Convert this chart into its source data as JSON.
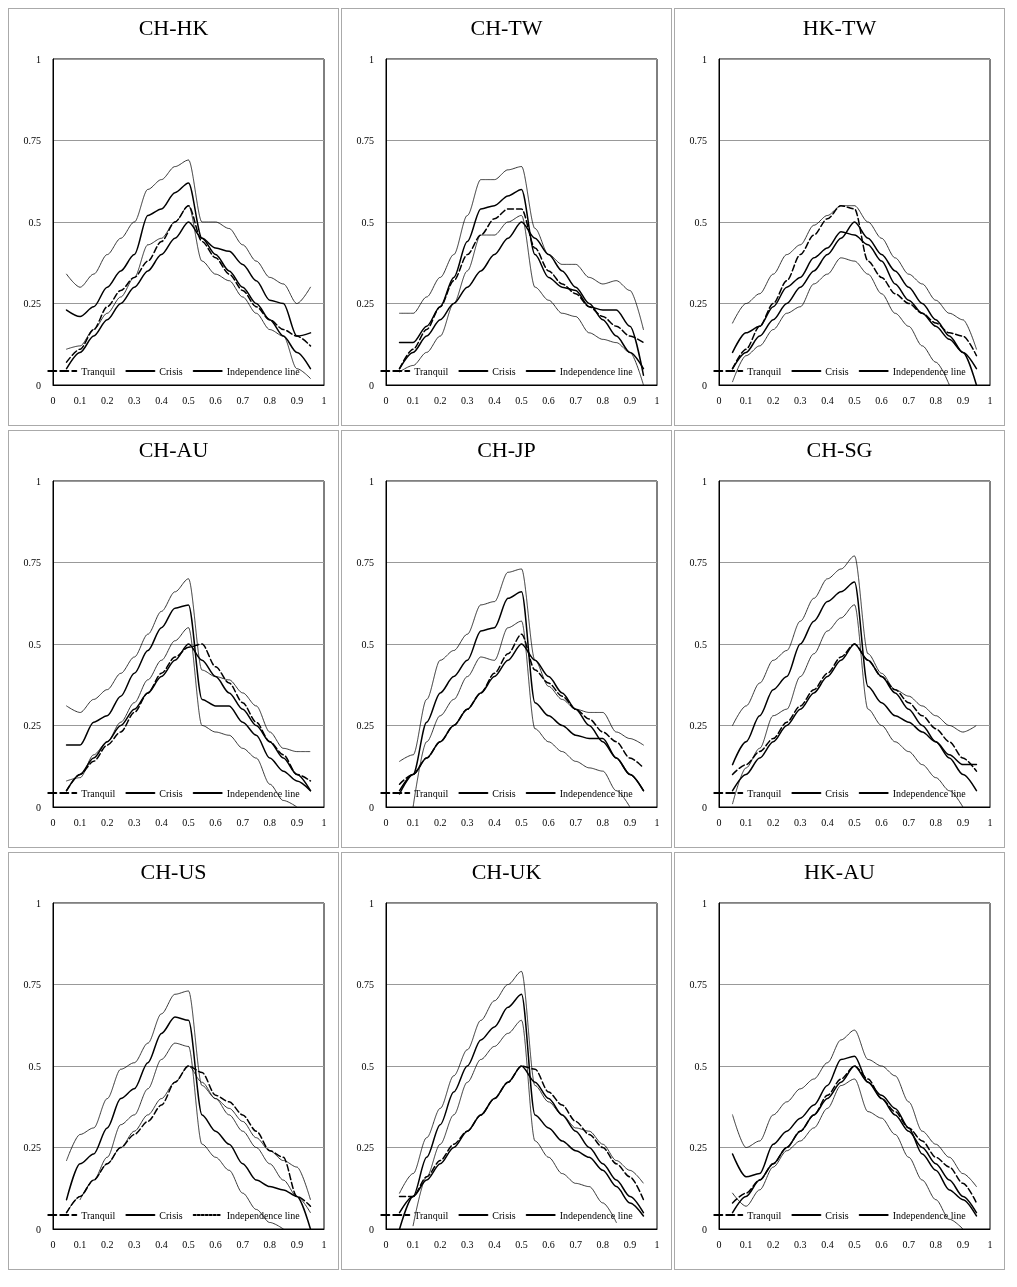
{
  "chart_data": [
    {
      "type": "line",
      "title": "CH-HK",
      "x": [
        0.05,
        0.1,
        0.15,
        0.2,
        0.25,
        0.3,
        0.35,
        0.4,
        0.45,
        0.5,
        0.55,
        0.6,
        0.65,
        0.7,
        0.75,
        0.8,
        0.85,
        0.9,
        0.95
      ],
      "xlim": [
        0,
        1
      ],
      "xticks": [
        0,
        0.1,
        0.2,
        0.3,
        0.4,
        0.5,
        0.6,
        0.7,
        0.8,
        0.9,
        1
      ],
      "ylim": [
        0,
        1
      ],
      "yticks": [
        0,
        0.25,
        0.5,
        0.75,
        1
      ],
      "grid": "y",
      "legend": "bottom",
      "marker": "none",
      "series": [
        {
          "name": "Tranquil",
          "color": "#000000",
          "line_style": "dashed",
          "values": [
            0.07,
            0.11,
            0.17,
            0.24,
            0.29,
            0.33,
            0.38,
            0.44,
            0.5,
            0.55,
            0.44,
            0.39,
            0.34,
            0.29,
            0.24,
            0.2,
            0.17,
            0.15,
            0.12
          ]
        },
        {
          "name": "Crisis",
          "color": "#000000",
          "line_style": "solid",
          "values": [
            0.23,
            0.21,
            0.24,
            0.3,
            0.35,
            0.4,
            0.52,
            0.54,
            0.59,
            0.62,
            0.45,
            0.42,
            0.41,
            0.37,
            0.32,
            0.26,
            0.25,
            0.15,
            0.16
          ]
        },
        {
          "color": "#000000",
          "line_style": "dotted",
          "values": [
            0.11,
            0.12,
            0.17,
            0.22,
            0.27,
            0.33,
            0.43,
            0.45,
            0.5,
            0.55,
            0.38,
            0.34,
            0.32,
            0.27,
            0.22,
            0.17,
            0.15,
            0.05,
            0.02
          ]
        },
        {
          "color": "#000000",
          "line_style": "dotted",
          "values": [
            0.34,
            0.3,
            0.34,
            0.4,
            0.45,
            0.5,
            0.6,
            0.63,
            0.67,
            0.69,
            0.5,
            0.5,
            0.48,
            0.43,
            0.38,
            0.33,
            0.31,
            0.25,
            0.3
          ]
        },
        {
          "name": "Independence line",
          "color": "#000000",
          "line_style": "solid",
          "values": [
            0.05,
            0.1,
            0.15,
            0.2,
            0.25,
            0.3,
            0.35,
            0.4,
            0.45,
            0.5,
            0.45,
            0.4,
            0.35,
            0.3,
            0.25,
            0.2,
            0.15,
            0.1,
            0.05
          ]
        }
      ]
    },
    {
      "type": "line",
      "title": "CH-TW",
      "x": [
        0.05,
        0.1,
        0.15,
        0.2,
        0.25,
        0.3,
        0.35,
        0.4,
        0.45,
        0.5,
        0.55,
        0.6,
        0.65,
        0.7,
        0.75,
        0.8,
        0.85,
        0.9,
        0.95
      ],
      "xlim": [
        0,
        1
      ],
      "xticks": [
        0,
        0.1,
        0.2,
        0.3,
        0.4,
        0.5,
        0.6,
        0.7,
        0.8,
        0.9,
        1
      ],
      "ylim": [
        0,
        1
      ],
      "yticks": [
        0,
        0.25,
        0.5,
        0.75,
        1
      ],
      "grid": "y",
      "legend": "bottom",
      "marker": "none",
      "series": [
        {
          "name": "Tranquil",
          "color": "#000000",
          "line_style": "dashed",
          "values": [
            0.05,
            0.11,
            0.17,
            0.24,
            0.32,
            0.4,
            0.46,
            0.51,
            0.54,
            0.54,
            0.42,
            0.35,
            0.31,
            0.28,
            0.24,
            0.21,
            0.18,
            0.15,
            0.13
          ]
        },
        {
          "name": "Crisis",
          "color": "#000000",
          "line_style": "solid",
          "values": [
            0.13,
            0.13,
            0.18,
            0.24,
            0.33,
            0.44,
            0.54,
            0.55,
            0.58,
            0.6,
            0.4,
            0.33,
            0.3,
            0.29,
            0.24,
            0.23,
            0.23,
            0.18,
            0.03
          ]
        },
        {
          "color": "#000000",
          "line_style": "dotted",
          "values": [
            0.04,
            0.06,
            0.1,
            0.15,
            0.25,
            0.35,
            0.46,
            0.46,
            0.5,
            0.52,
            0.3,
            0.26,
            0.22,
            0.21,
            0.16,
            0.14,
            0.13,
            0.1,
            0
          ]
        },
        {
          "color": "#000000",
          "line_style": "dotted",
          "values": [
            0.22,
            0.22,
            0.27,
            0.33,
            0.4,
            0.52,
            0.63,
            0.63,
            0.66,
            0.67,
            0.48,
            0.4,
            0.37,
            0.37,
            0.33,
            0.31,
            0.32,
            0.29,
            0.17
          ]
        },
        {
          "name": "Independence line",
          "color": "#000000",
          "line_style": "solid",
          "values": [
            0.05,
            0.1,
            0.15,
            0.2,
            0.25,
            0.3,
            0.35,
            0.4,
            0.45,
            0.5,
            0.45,
            0.4,
            0.35,
            0.3,
            0.25,
            0.2,
            0.15,
            0.1,
            0.05
          ]
        }
      ]
    },
    {
      "type": "line",
      "title": "HK-TW",
      "x": [
        0.05,
        0.1,
        0.15,
        0.2,
        0.25,
        0.3,
        0.35,
        0.4,
        0.45,
        0.5,
        0.55,
        0.6,
        0.65,
        0.7,
        0.75,
        0.8,
        0.85,
        0.9,
        0.95
      ],
      "xlim": [
        0,
        1
      ],
      "xticks": [
        0,
        0.1,
        0.2,
        0.3,
        0.4,
        0.5,
        0.6,
        0.7,
        0.8,
        0.9,
        1
      ],
      "ylim": [
        0,
        1
      ],
      "yticks": [
        0,
        0.25,
        0.5,
        0.75,
        1
      ],
      "grid": "y",
      "legend": "bottom",
      "marker": "none",
      "series": [
        {
          "name": "Tranquil",
          "color": "#000000",
          "line_style": "dashed",
          "values": [
            0.05,
            0.11,
            0.18,
            0.25,
            0.32,
            0.4,
            0.46,
            0.51,
            0.55,
            0.54,
            0.38,
            0.33,
            0.28,
            0.25,
            0.22,
            0.19,
            0.16,
            0.15,
            0.09
          ]
        },
        {
          "name": "Crisis",
          "color": "#000000",
          "line_style": "solid",
          "values": [
            0.1,
            0.16,
            0.18,
            0.24,
            0.3,
            0.33,
            0.39,
            0.42,
            0.47,
            0.46,
            0.43,
            0.38,
            0.31,
            0.26,
            0.22,
            0.18,
            0.14,
            0.1,
            0
          ]
        },
        {
          "color": "#000000",
          "line_style": "dotted",
          "values": [
            0.01,
            0.09,
            0.12,
            0.17,
            0.22,
            0.24,
            0.31,
            0.34,
            0.39,
            0.38,
            0.34,
            0.28,
            0.22,
            0.18,
            0.12,
            0.07,
            0,
            null,
            null
          ]
        },
        {
          "color": "#000000",
          "line_style": "dotted",
          "values": [
            0.19,
            0.25,
            0.28,
            0.34,
            0.4,
            0.43,
            0.49,
            0.52,
            0.55,
            0.55,
            0.5,
            0.45,
            0.39,
            0.34,
            0.31,
            0.26,
            0.22,
            0.2,
            0.11
          ]
        },
        {
          "name": "Independence line",
          "color": "#000000",
          "line_style": "solid",
          "values": [
            0.05,
            0.1,
            0.15,
            0.2,
            0.25,
            0.3,
            0.35,
            0.4,
            0.45,
            0.5,
            0.45,
            0.4,
            0.35,
            0.3,
            0.25,
            0.2,
            0.15,
            0.1,
            0.05
          ]
        }
      ]
    },
    {
      "type": "line",
      "title": "CH-AU",
      "x": [
        0.05,
        0.1,
        0.15,
        0.2,
        0.25,
        0.3,
        0.35,
        0.4,
        0.45,
        0.5,
        0.55,
        0.6,
        0.65,
        0.7,
        0.75,
        0.8,
        0.85,
        0.9,
        0.95
      ],
      "xlim": [
        0,
        1
      ],
      "xticks": [
        0,
        0.1,
        0.2,
        0.3,
        0.4,
        0.5,
        0.6,
        0.7,
        0.8,
        0.9,
        1
      ],
      "ylim": [
        0,
        1
      ],
      "yticks": [
        0,
        0.25,
        0.5,
        0.75,
        1
      ],
      "grid": "y",
      "legend": "bottom",
      "marker": "none",
      "series": [
        {
          "name": "Tranquil",
          "color": "#000000",
          "line_style": "dashed",
          "values": [
            0.05,
            0.1,
            0.14,
            0.19,
            0.23,
            0.29,
            0.35,
            0.41,
            0.46,
            0.49,
            0.5,
            0.43,
            0.38,
            0.32,
            0.26,
            0.2,
            0.16,
            0.1,
            0.08
          ]
        },
        {
          "name": "Crisis",
          "color": "#000000",
          "line_style": "solid",
          "values": [
            0.19,
            0.19,
            0.26,
            0.28,
            0.34,
            0.41,
            0.48,
            0.55,
            0.61,
            0.62,
            0.33,
            0.31,
            0.31,
            0.26,
            0.22,
            0.15,
            0.11,
            0.08,
            0.05
          ]
        },
        {
          "color": "#000000",
          "line_style": "dotted",
          "values": [
            0.08,
            0.09,
            0.16,
            0.2,
            0.26,
            0.32,
            0.39,
            0.45,
            0.51,
            0.55,
            0.25,
            0.23,
            0.22,
            0.18,
            0.15,
            0.07,
            0.02,
            0,
            null
          ]
        },
        {
          "color": "#000000",
          "line_style": "dotted",
          "values": [
            0.31,
            0.29,
            0.33,
            0.36,
            0.41,
            0.46,
            0.53,
            0.6,
            0.66,
            0.7,
            0.42,
            0.4,
            0.39,
            0.35,
            0.31,
            0.23,
            0.18,
            0.17,
            0.17
          ]
        },
        {
          "name": "Independence line",
          "color": "#000000",
          "line_style": "solid",
          "values": [
            0.05,
            0.1,
            0.15,
            0.2,
            0.25,
            0.3,
            0.35,
            0.4,
            0.45,
            0.5,
            0.45,
            0.4,
            0.35,
            0.3,
            0.25,
            0.2,
            0.15,
            0.1,
            0.05
          ]
        }
      ]
    },
    {
      "type": "line",
      "title": "CH-JP",
      "x": [
        0.05,
        0.1,
        0.15,
        0.2,
        0.25,
        0.3,
        0.35,
        0.4,
        0.45,
        0.5,
        0.55,
        0.6,
        0.65,
        0.7,
        0.75,
        0.8,
        0.85,
        0.9,
        0.95
      ],
      "xlim": [
        0,
        1
      ],
      "xticks": [
        0,
        0.1,
        0.2,
        0.3,
        0.4,
        0.5,
        0.6,
        0.7,
        0.8,
        0.9,
        1
      ],
      "ylim": [
        0,
        1
      ],
      "yticks": [
        0,
        0.25,
        0.5,
        0.75,
        1
      ],
      "grid": "y",
      "legend": "bottom",
      "marker": "none",
      "series": [
        {
          "name": "Tranquil",
          "color": "#000000",
          "line_style": "dashed",
          "values": [
            0.07,
            0.1,
            0.15,
            0.2,
            0.25,
            0.3,
            0.35,
            0.41,
            0.47,
            0.53,
            0.42,
            0.38,
            0.34,
            0.3,
            0.27,
            0.23,
            0.2,
            0.15,
            0.12
          ]
        },
        {
          "name": "Crisis",
          "color": "#000000",
          "line_style": "solid",
          "values": [
            0.04,
            0.1,
            0.26,
            0.35,
            0.4,
            0.45,
            0.54,
            0.55,
            0.64,
            0.66,
            0.32,
            0.28,
            0.25,
            0.22,
            0.21,
            0.21,
            0.15,
            0.1,
            0.05
          ]
        },
        {
          "color": "#000000",
          "line_style": "dotted",
          "values": [
            null,
            0,
            0.2,
            0.28,
            0.33,
            0.4,
            0.46,
            0.45,
            0.55,
            0.57,
            0.24,
            0.2,
            0.17,
            0.14,
            0.12,
            0.11,
            0.05,
            0,
            null
          ]
        },
        {
          "color": "#000000",
          "line_style": "dotted",
          "values": [
            0.14,
            0.16,
            0.33,
            0.45,
            0.48,
            0.53,
            0.62,
            0.63,
            0.72,
            0.73,
            0.45,
            0.37,
            0.33,
            0.3,
            0.29,
            0.29,
            0.23,
            0.21,
            0.19
          ]
        },
        {
          "name": "Independence line",
          "color": "#000000",
          "line_style": "solid",
          "values": [
            0.05,
            0.1,
            0.15,
            0.2,
            0.25,
            0.3,
            0.35,
            0.4,
            0.45,
            0.5,
            0.45,
            0.4,
            0.35,
            0.3,
            0.25,
            0.2,
            0.15,
            0.1,
            0.05
          ]
        }
      ]
    },
    {
      "type": "line",
      "title": "CH-SG",
      "x": [
        0.05,
        0.1,
        0.15,
        0.2,
        0.25,
        0.3,
        0.35,
        0.4,
        0.45,
        0.5,
        0.55,
        0.6,
        0.65,
        0.7,
        0.75,
        0.8,
        0.85,
        0.9,
        0.95
      ],
      "xlim": [
        0,
        1
      ],
      "xticks": [
        0,
        0.1,
        0.2,
        0.3,
        0.4,
        0.5,
        0.6,
        0.7,
        0.8,
        0.9,
        1
      ],
      "ylim": [
        0,
        1
      ],
      "yticks": [
        0,
        0.25,
        0.5,
        0.75,
        1
      ],
      "grid": "y",
      "legend": "bottom",
      "marker": "none",
      "series": [
        {
          "name": "Tranquil",
          "color": "#000000",
          "line_style": "dashed",
          "values": [
            0.1,
            0.13,
            0.17,
            0.21,
            0.26,
            0.31,
            0.36,
            0.41,
            0.46,
            0.5,
            0.45,
            0.4,
            0.36,
            0.32,
            0.28,
            0.24,
            0.2,
            0.15,
            0.11
          ]
        },
        {
          "name": "Crisis",
          "color": "#000000",
          "line_style": "solid",
          "values": [
            0.13,
            0.2,
            0.28,
            0.36,
            0.4,
            0.5,
            0.57,
            0.63,
            0.66,
            0.69,
            0.37,
            0.32,
            0.28,
            0.26,
            0.23,
            0.2,
            0.16,
            0.13,
            0.13
          ]
        },
        {
          "color": "#000000",
          "line_style": "dotted",
          "values": [
            0.01,
            0.12,
            0.18,
            0.28,
            0.3,
            0.4,
            0.47,
            0.54,
            0.58,
            0.62,
            0.3,
            0.25,
            0.2,
            0.17,
            0.13,
            0.09,
            0.05,
            0,
            null
          ]
        },
        {
          "color": "#000000",
          "line_style": "dotted",
          "values": [
            0.25,
            0.31,
            0.38,
            0.45,
            0.48,
            0.57,
            0.64,
            0.7,
            0.73,
            0.77,
            0.47,
            0.41,
            0.36,
            0.34,
            0.31,
            0.28,
            0.25,
            0.23,
            0.25
          ]
        },
        {
          "name": "Independence line",
          "color": "#000000",
          "line_style": "solid",
          "values": [
            0.05,
            0.1,
            0.15,
            0.2,
            0.25,
            0.3,
            0.35,
            0.4,
            0.45,
            0.5,
            0.45,
            0.4,
            0.35,
            0.3,
            0.25,
            0.2,
            0.15,
            0.1,
            0.05
          ]
        }
      ]
    },
    {
      "type": "line",
      "title": "CH-US",
      "x": [
        0.05,
        0.1,
        0.15,
        0.2,
        0.25,
        0.3,
        0.35,
        0.4,
        0.45,
        0.5,
        0.55,
        0.6,
        0.65,
        0.7,
        0.75,
        0.8,
        0.85,
        0.9,
        0.95
      ],
      "xlim": [
        0,
        1
      ],
      "xticks": [
        0,
        0.1,
        0.2,
        0.3,
        0.4,
        0.5,
        0.6,
        0.7,
        0.8,
        0.9,
        1
      ],
      "ylim": [
        0,
        1
      ],
      "yticks": [
        0,
        0.25,
        0.5,
        0.75,
        1
      ],
      "grid": "y",
      "legend": "bottom",
      "marker": "none",
      "series": [
        {
          "name": "Tranquil",
          "color": "#000000",
          "line_style": "dashed",
          "values": [
            0.05,
            0.1,
            0.15,
            0.2,
            0.25,
            0.29,
            0.33,
            0.38,
            0.45,
            0.5,
            0.48,
            0.41,
            0.39,
            0.35,
            0.3,
            0.24,
            0.22,
            0.1,
            0.07
          ]
        },
        {
          "name": "Crisis",
          "color": "#000000",
          "line_style": "solid",
          "values": [
            0.09,
            0.2,
            0.23,
            0.31,
            0.4,
            0.43,
            0.51,
            0.6,
            0.65,
            0.64,
            0.35,
            0.3,
            0.26,
            0.2,
            0.15,
            0.13,
            0.12,
            0.1,
            0
          ]
        },
        {
          "color": "#000000",
          "line_style": "dotted",
          "values": [
            null,
            0.09,
            0.15,
            0.22,
            0.32,
            0.35,
            0.43,
            0.52,
            0.57,
            0.56,
            0.26,
            0.22,
            0.18,
            0.11,
            0.06,
            0.02,
            0,
            null,
            null
          ]
        },
        {
          "color": "#000000",
          "line_style": "dotted",
          "values": [
            0.21,
            0.29,
            0.31,
            0.4,
            0.49,
            0.51,
            0.57,
            0.66,
            0.72,
            0.73,
            0.44,
            0.4,
            0.37,
            0.33,
            0.28,
            0.24,
            0.21,
            0.19,
            0.09
          ]
        },
        {
          "name": "Independence line",
          "color": "#000000",
          "line_style": "dotted",
          "values": [
            0.05,
            0.1,
            0.15,
            0.2,
            0.25,
            0.3,
            0.35,
            0.4,
            0.45,
            0.5,
            0.45,
            0.4,
            0.35,
            0.3,
            0.25,
            0.2,
            0.15,
            0.1,
            0.05
          ]
        }
      ]
    },
    {
      "type": "line",
      "title": "CH-UK",
      "x": [
        0.05,
        0.1,
        0.15,
        0.2,
        0.25,
        0.3,
        0.35,
        0.4,
        0.45,
        0.5,
        0.55,
        0.6,
        0.65,
        0.7,
        0.75,
        0.8,
        0.85,
        0.9,
        0.95
      ],
      "xlim": [
        0,
        1
      ],
      "xticks": [
        0,
        0.1,
        0.2,
        0.3,
        0.4,
        0.5,
        0.6,
        0.7,
        0.8,
        0.9,
        1
      ],
      "ylim": [
        0,
        1
      ],
      "yticks": [
        0,
        0.25,
        0.5,
        0.75,
        1
      ],
      "grid": "y",
      "legend": "bottom",
      "marker": "none",
      "series": [
        {
          "name": "Tranquil",
          "color": "#000000",
          "line_style": "dashed",
          "values": [
            0.1,
            0.1,
            0.16,
            0.21,
            0.26,
            0.3,
            0.35,
            0.4,
            0.45,
            0.5,
            0.49,
            0.42,
            0.38,
            0.33,
            0.29,
            0.25,
            0.2,
            0.16,
            0.09
          ]
        },
        {
          "name": "Crisis",
          "color": "#000000",
          "line_style": "solid",
          "values": [
            0,
            0.1,
            0.22,
            0.32,
            0.42,
            0.5,
            0.58,
            0.62,
            0.68,
            0.72,
            0.35,
            0.31,
            0.27,
            0.24,
            0.22,
            0.18,
            0.13,
            0.08,
            0.04
          ]
        },
        {
          "color": "#000000",
          "line_style": "dotted",
          "values": [
            null,
            0.01,
            0.16,
            0.26,
            0.35,
            0.45,
            0.52,
            0.56,
            0.6,
            0.64,
            0.27,
            0.22,
            0.17,
            0.14,
            0.13,
            0.08,
            0.02,
            null,
            null
          ]
        },
        {
          "color": "#000000",
          "line_style": "dotted",
          "values": [
            0.11,
            0.17,
            0.28,
            0.37,
            0.47,
            0.55,
            0.64,
            0.7,
            0.75,
            0.79,
            0.44,
            0.39,
            0.35,
            0.31,
            0.3,
            0.26,
            0.21,
            0.18,
            0.14
          ]
        },
        {
          "name": "Independence line",
          "color": "#000000",
          "line_style": "solid",
          "values": [
            0.05,
            0.1,
            0.15,
            0.2,
            0.25,
            0.3,
            0.35,
            0.4,
            0.45,
            0.5,
            0.45,
            0.4,
            0.35,
            0.3,
            0.25,
            0.2,
            0.15,
            0.1,
            0.05
          ]
        }
      ]
    },
    {
      "type": "line",
      "title": "HK-AU",
      "x": [
        0.05,
        0.1,
        0.15,
        0.2,
        0.25,
        0.3,
        0.35,
        0.4,
        0.45,
        0.5,
        0.55,
        0.6,
        0.65,
        0.7,
        0.75,
        0.8,
        0.85,
        0.9,
        0.95
      ],
      "xlim": [
        0,
        1
      ],
      "xticks": [
        0,
        0.1,
        0.2,
        0.3,
        0.4,
        0.5,
        0.6,
        0.7,
        0.8,
        0.9,
        1
      ],
      "ylim": [
        0,
        1
      ],
      "yticks": [
        0,
        0.25,
        0.5,
        0.75,
        1
      ],
      "grid": "y",
      "legend": "bottom",
      "marker": "none",
      "series": [
        {
          "name": "Tranquil",
          "color": "#000000",
          "line_style": "dashed",
          "values": [
            0.08,
            0.11,
            0.15,
            0.2,
            0.25,
            0.3,
            0.35,
            0.41,
            0.46,
            0.5,
            0.46,
            0.4,
            0.36,
            0.31,
            0.27,
            0.22,
            0.19,
            0.14,
            0.08
          ]
        },
        {
          "name": "Crisis",
          "color": "#000000",
          "line_style": "solid",
          "values": [
            0.23,
            0.16,
            0.17,
            0.26,
            0.3,
            0.34,
            0.38,
            0.44,
            0.52,
            0.53,
            0.45,
            0.41,
            0.37,
            0.31,
            0.23,
            0.18,
            0.12,
            0.09,
            0.04
          ]
        },
        {
          "color": "#000000",
          "line_style": "dotted",
          "values": [
            0.11,
            0.07,
            0.12,
            0.19,
            0.24,
            0.27,
            0.31,
            0.37,
            0.44,
            0.46,
            0.36,
            0.34,
            0.29,
            0.22,
            0.15,
            0.09,
            0.03,
            0,
            null
          ]
        },
        {
          "color": "#000000",
          "line_style": "dotted",
          "values": [
            0.35,
            0.25,
            0.27,
            0.35,
            0.39,
            0.43,
            0.46,
            0.51,
            0.58,
            0.61,
            0.52,
            0.5,
            0.47,
            0.39,
            0.3,
            0.26,
            0.22,
            0.17,
            0.13
          ]
        },
        {
          "name": "Independence line",
          "color": "#000000",
          "line_style": "solid",
          "values": [
            0.05,
            0.1,
            0.15,
            0.2,
            0.25,
            0.3,
            0.35,
            0.4,
            0.45,
            0.5,
            0.45,
            0.4,
            0.35,
            0.3,
            0.25,
            0.2,
            0.15,
            0.1,
            0.05
          ]
        }
      ]
    }
  ]
}
